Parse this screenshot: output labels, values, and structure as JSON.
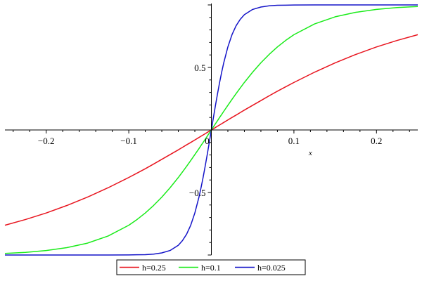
{
  "chart_data": {
    "type": "line",
    "title": "",
    "xlabel": "x",
    "ylabel": "",
    "xlim": [
      -0.25,
      0.25
    ],
    "ylim": [
      -1,
      1
    ],
    "grid": false,
    "legend_position": "bottom",
    "x_ticks": [
      {
        "value": -0.2,
        "label": "−0.2"
      },
      {
        "value": -0.1,
        "label": "−0.1"
      },
      {
        "value": 0,
        "label": "0"
      },
      {
        "value": 0.1,
        "label": "0.1"
      },
      {
        "value": 0.2,
        "label": "0.2"
      }
    ],
    "y_ticks": [
      {
        "value": 0.5,
        "label": "0.5"
      },
      {
        "value": -0.5,
        "label": "−0.5"
      }
    ],
    "x": [
      -0.25,
      -0.225,
      -0.2,
      -0.175,
      -0.15,
      -0.125,
      -0.1,
      -0.09,
      -0.08,
      -0.07,
      -0.06,
      -0.05,
      -0.04,
      -0.035,
      -0.03,
      -0.025,
      -0.02,
      -0.015,
      -0.0125,
      -0.01,
      -0.0075,
      -0.005,
      -0.0025,
      0,
      0.0025,
      0.005,
      0.0075,
      0.01,
      0.0125,
      0.015,
      0.02,
      0.025,
      0.03,
      0.035,
      0.04,
      0.05,
      0.06,
      0.07,
      0.08,
      0.09,
      0.1,
      0.125,
      0.15,
      0.175,
      0.2,
      0.225,
      0.25
    ],
    "series": [
      {
        "name": "h=0.25",
        "color": "#e8141e",
        "values": [
          -0.762,
          -0.716,
          -0.664,
          -0.604,
          -0.537,
          -0.462,
          -0.38,
          -0.345,
          -0.31,
          -0.273,
          -0.235,
          -0.197,
          -0.159,
          -0.139,
          -0.119,
          -0.1,
          -0.08,
          -0.06,
          -0.05,
          -0.04,
          -0.03,
          -0.02,
          -0.01,
          0,
          0.01,
          0.02,
          0.03,
          0.04,
          0.05,
          0.06,
          0.08,
          0.1,
          0.119,
          0.139,
          0.159,
          0.197,
          0.235,
          0.273,
          0.31,
          0.345,
          0.38,
          0.462,
          0.537,
          0.604,
          0.664,
          0.716,
          0.762
        ]
      },
      {
        "name": "h=0.1",
        "color": "#1aeb1a",
        "values": [
          -0.987,
          -0.979,
          -0.964,
          -0.941,
          -0.905,
          -0.848,
          -0.762,
          -0.716,
          -0.664,
          -0.604,
          -0.537,
          -0.462,
          -0.38,
          -0.336,
          -0.291,
          -0.245,
          -0.197,
          -0.149,
          -0.124,
          -0.1,
          -0.075,
          -0.05,
          -0.025,
          0,
          0.025,
          0.05,
          0.075,
          0.1,
          0.124,
          0.149,
          0.197,
          0.245,
          0.291,
          0.336,
          0.38,
          0.462,
          0.537,
          0.604,
          0.664,
          0.716,
          0.762,
          0.848,
          0.905,
          0.941,
          0.964,
          0.979,
          0.987
        ]
      },
      {
        "name": "h=0.025",
        "color": "#1414c8",
        "values": [
          -1.0,
          -1.0,
          -1.0,
          -1.0,
          -1.0,
          -1.0,
          -0.999,
          -0.998,
          -0.997,
          -0.993,
          -0.983,
          -0.964,
          -0.922,
          -0.885,
          -0.834,
          -0.762,
          -0.664,
          -0.537,
          -0.462,
          -0.38,
          -0.291,
          -0.197,
          -0.1,
          0,
          0.1,
          0.197,
          0.291,
          0.38,
          0.462,
          0.537,
          0.664,
          0.762,
          0.834,
          0.885,
          0.922,
          0.964,
          0.983,
          0.993,
          0.997,
          0.998,
          0.999,
          1.0,
          1.0,
          1.0,
          1.0,
          1.0,
          1.0
        ]
      }
    ],
    "legend": [
      "h=0.25",
      "h=0.1",
      "h=0.025"
    ]
  }
}
